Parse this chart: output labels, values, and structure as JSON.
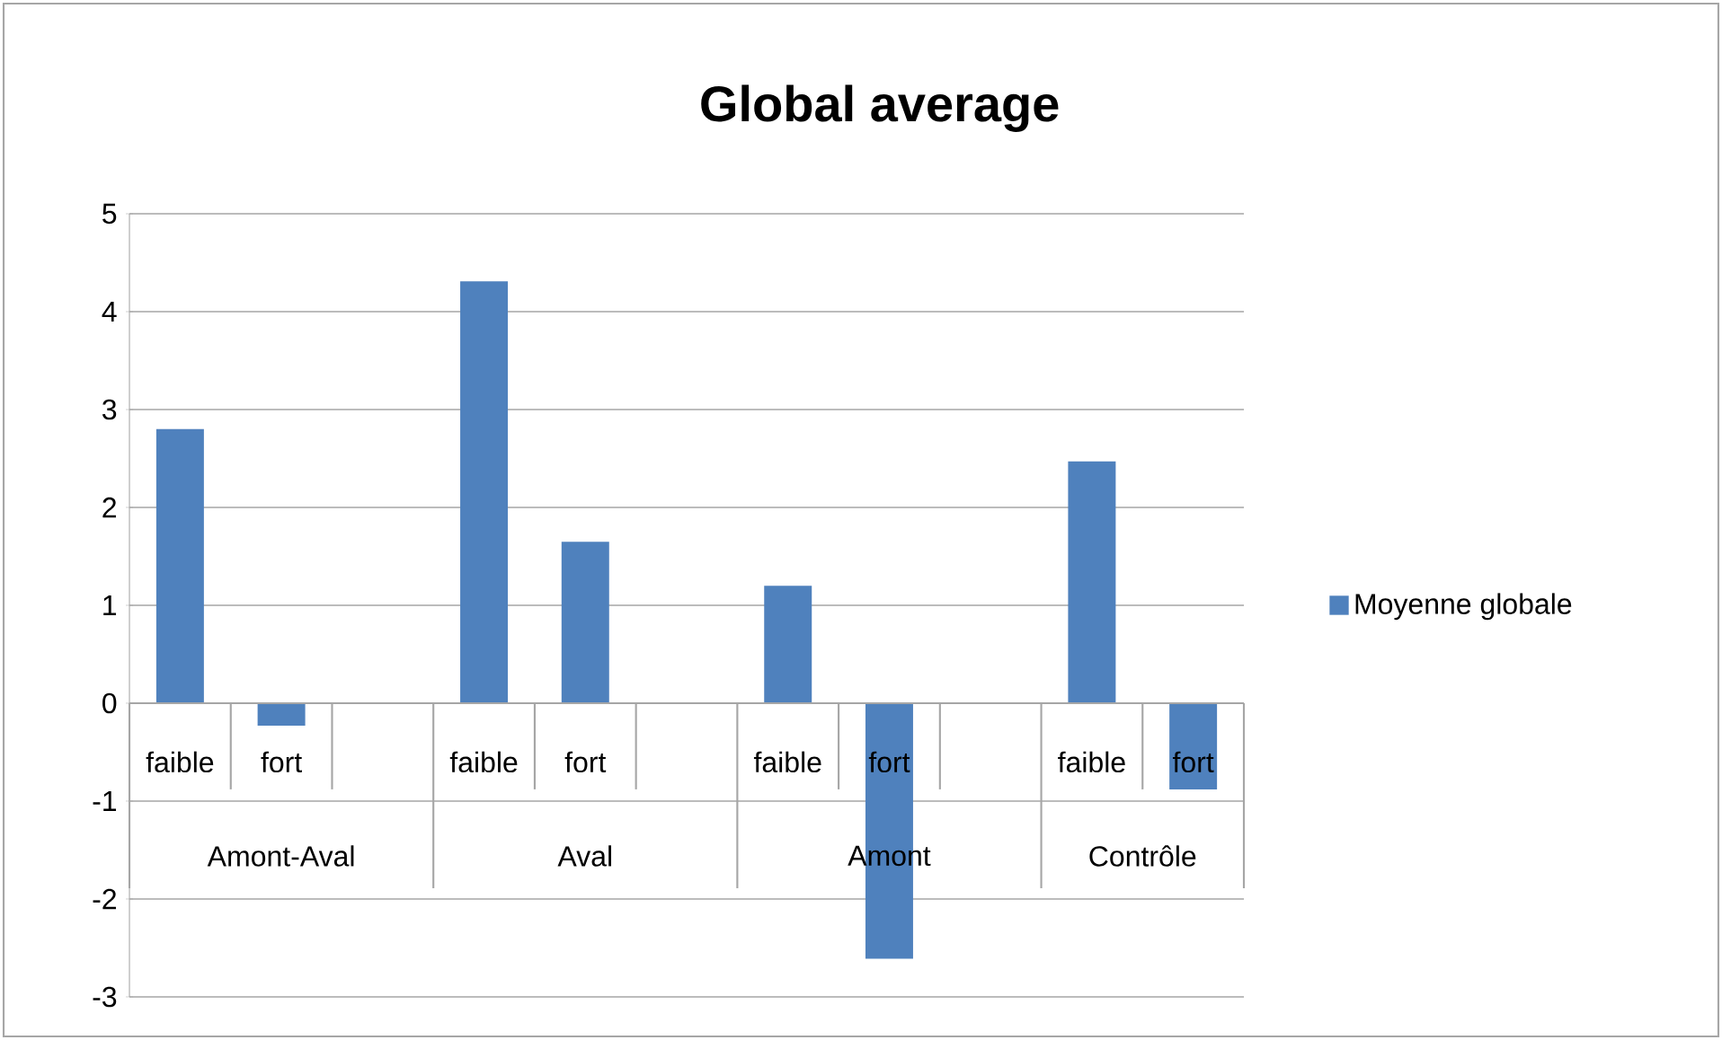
{
  "chart_data": {
    "type": "bar",
    "title": "Global average",
    "categories": [
      "faible",
      "fort",
      null,
      "faible",
      "fort",
      null,
      "faible",
      "fort",
      null,
      "faible",
      "fort"
    ],
    "series": [
      {
        "name": "Moyenne globale",
        "color": "#4f81bd",
        "values": [
          2.8,
          -0.23,
          null,
          4.31,
          1.65,
          null,
          1.2,
          -2.61,
          null,
          2.47,
          -0.88
        ]
      }
    ],
    "annotations": [
      "Amont-Aval",
      "Aval",
      "Amont",
      "Contrôle"
    ],
    "ylim": [
      -3,
      5
    ],
    "yticks": [
      -3,
      -2,
      -1,
      0,
      1,
      2,
      3,
      4,
      5
    ],
    "grid": "y",
    "legend": "right"
  }
}
